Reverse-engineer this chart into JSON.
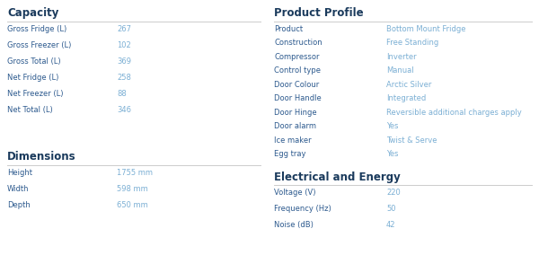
{
  "bg_color": "#ffffff",
  "header_color": "#1a3a5c",
  "label_color": "#2d5a8e",
  "value_color": "#7bafd4",
  "line_color": "#cccccc",
  "header_fontsize": 8.5,
  "label_fontsize": 6.0,
  "value_fontsize": 6.0,
  "capacity_title": "Capacity",
  "capacity_rows": [
    [
      "Gross Fridge (L)",
      "267"
    ],
    [
      "Gross Freezer (L)",
      "102"
    ],
    [
      "Gross Total (L)",
      "369"
    ],
    [
      "Net Fridge (L)",
      "258"
    ],
    [
      "Net Freezer (L)",
      "88"
    ],
    [
      "Net Total (L)",
      "346"
    ]
  ],
  "dimensions_title": "Dimensions",
  "dimensions_rows": [
    [
      "Height",
      "1755 mm"
    ],
    [
      "Width",
      "598 mm"
    ],
    [
      "Depth",
      "650 mm"
    ]
  ],
  "profile_title": "Product Profile",
  "profile_rows": [
    [
      "Product",
      "Bottom Mount Fridge"
    ],
    [
      "Construction",
      "Free Standing"
    ],
    [
      "Compressor",
      "Inverter"
    ],
    [
      "Control type",
      "Manual"
    ],
    [
      "Door Colour",
      "Arctic Silver"
    ],
    [
      "Door Handle",
      "Integrated"
    ],
    [
      "Door Hinge",
      "Reversible additional charges apply"
    ],
    [
      "Door alarm",
      "Yes"
    ],
    [
      "Ice maker",
      "Twist & Serve"
    ],
    [
      "Egg tray",
      "Yes"
    ]
  ],
  "energy_title": "Electrical and Energy",
  "energy_rows": [
    [
      "Voltage (V)",
      "220"
    ],
    [
      "Frequency (Hz)",
      "50"
    ],
    [
      "Noise (dB)",
      "42"
    ]
  ]
}
